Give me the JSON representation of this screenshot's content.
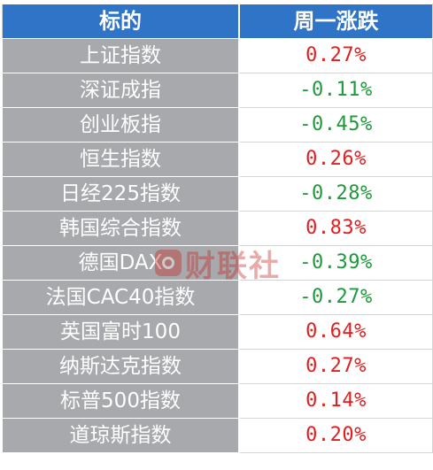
{
  "header": {
    "col_name": "标的",
    "col_change": "周一涨跌"
  },
  "rows": [
    {
      "name": "上证指数",
      "change": "0.27%",
      "direction": "up"
    },
    {
      "name": "深证成指",
      "change": "-0.11%",
      "direction": "down"
    },
    {
      "name": "创业板指",
      "change": "-0.45%",
      "direction": "down"
    },
    {
      "name": "恒生指数",
      "change": "0.26%",
      "direction": "up"
    },
    {
      "name": "日经225指数",
      "change": "-0.28%",
      "direction": "down"
    },
    {
      "name": "韩国综合指数",
      "change": "0.83%",
      "direction": "up"
    },
    {
      "name": "德国DAX",
      "change": "-0.39%",
      "direction": "down"
    },
    {
      "name": "法国CAC40指数",
      "change": "-0.27%",
      "direction": "down"
    },
    {
      "name": "英国富时100",
      "change": "0.64%",
      "direction": "up"
    },
    {
      "name": "纳斯达克指数",
      "change": "0.27%",
      "direction": "up"
    },
    {
      "name": "标普500指数",
      "change": "0.14%",
      "direction": "up"
    },
    {
      "name": "道琼斯指数",
      "change": "0.20%",
      "direction": "up"
    }
  ],
  "watermark": {
    "text": "财联社"
  },
  "colors": {
    "header_bg": "#2f74c7",
    "name_cell_bg": "#a7a9ac",
    "up": "#e02020",
    "down": "#1f9a3a"
  }
}
